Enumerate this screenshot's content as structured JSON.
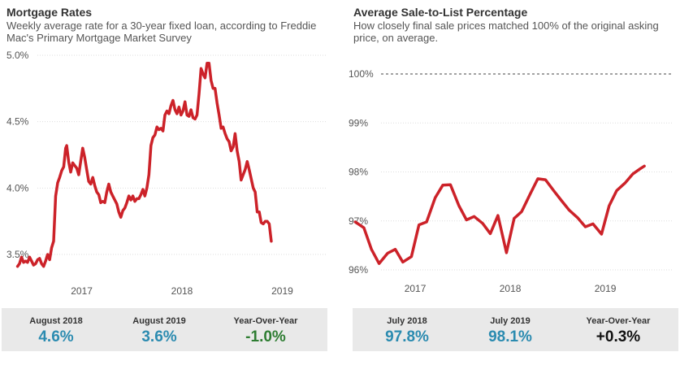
{
  "colors": {
    "line": "#cc2229",
    "stat_blue": "#2b8bb0",
    "stat_green": "#2e7d32",
    "stat_black": "#111111",
    "grid": "#dddddd"
  },
  "left": {
    "title": "Mortgage Rates",
    "subtitle": "Weekly average rate for a 30-year fixed loan, according to Freddie Mac's Primary Mortgage Market Survey",
    "stats": [
      {
        "label": "August 2018",
        "value": "4.6%"
      },
      {
        "label": "August 2019",
        "value": "3.6%"
      },
      {
        "label": "Year-Over-Year",
        "value": "-1.0%"
      }
    ]
  },
  "right": {
    "title": "Average Sale-to-List Percentage",
    "subtitle": "How closely final sale prices matched 100% of the original asking price, on average.",
    "stats": [
      {
        "label": "July 2018",
        "value": "97.8%"
      },
      {
        "label": "July 2019",
        "value": "98.1%"
      },
      {
        "label": "Year-Over-Year",
        "value": "+0.3%"
      }
    ]
  },
  "chart_data": [
    {
      "type": "line",
      "title": "Mortgage Rates",
      "xlabel": "",
      "ylabel": "",
      "ylim": [
        3.5,
        5.0
      ],
      "xlim": [
        2016.25,
        2019.45
      ],
      "x_ticks": [
        {
          "value": 2017,
          "label": "2017"
        },
        {
          "value": 2018,
          "label": "2018"
        },
        {
          "value": 2019,
          "label": "2019"
        }
      ],
      "y_ticks": [
        {
          "value": 3.5,
          "label": "3.5%"
        },
        {
          "value": 4.0,
          "label": "4.0%"
        },
        {
          "value": 4.5,
          "label": "4.5%"
        },
        {
          "value": 5.0,
          "label": "5.0%"
        }
      ],
      "series": [
        {
          "name": "30-year fixed rate",
          "points": [
            [
              2016.36,
              3.41
            ],
            [
              2016.38,
              3.43
            ],
            [
              2016.4,
              3.48
            ],
            [
              2016.42,
              3.44
            ],
            [
              2016.44,
              3.45
            ],
            [
              2016.46,
              3.44
            ],
            [
              2016.48,
              3.48
            ],
            [
              2016.5,
              3.45
            ],
            [
              2016.52,
              3.42
            ],
            [
              2016.54,
              3.43
            ],
            [
              2016.56,
              3.46
            ],
            [
              2016.58,
              3.47
            ],
            [
              2016.6,
              3.43
            ],
            [
              2016.62,
              3.41
            ],
            [
              2016.64,
              3.45
            ],
            [
              2016.66,
              3.5
            ],
            [
              2016.68,
              3.46
            ],
            [
              2016.7,
              3.55
            ],
            [
              2016.72,
              3.6
            ],
            [
              2016.74,
              3.94
            ],
            [
              2016.76,
              4.04
            ],
            [
              2016.78,
              4.08
            ],
            [
              2016.8,
              4.13
            ],
            [
              2016.82,
              4.16
            ],
            [
              2016.84,
              4.3
            ],
            [
              2016.85,
              4.32
            ],
            [
              2016.87,
              4.2
            ],
            [
              2016.89,
              4.12
            ],
            [
              2016.91,
              4.19
            ],
            [
              2016.93,
              4.17
            ],
            [
              2016.95,
              4.15
            ],
            [
              2016.97,
              4.1
            ],
            [
              2016.99,
              4.2
            ],
            [
              2017.01,
              4.3
            ],
            [
              2017.03,
              4.23
            ],
            [
              2017.05,
              4.14
            ],
            [
              2017.07,
              4.05
            ],
            [
              2017.09,
              4.03
            ],
            [
              2017.11,
              4.08
            ],
            [
              2017.13,
              4.02
            ],
            [
              2017.15,
              3.97
            ],
            [
              2017.17,
              3.95
            ],
            [
              2017.19,
              3.89
            ],
            [
              2017.21,
              3.9
            ],
            [
              2017.23,
              3.89
            ],
            [
              2017.25,
              3.97
            ],
            [
              2017.27,
              4.03
            ],
            [
              2017.29,
              3.97
            ],
            [
              2017.31,
              3.94
            ],
            [
              2017.33,
              3.91
            ],
            [
              2017.35,
              3.88
            ],
            [
              2017.37,
              3.82
            ],
            [
              2017.39,
              3.78
            ],
            [
              2017.41,
              3.83
            ],
            [
              2017.43,
              3.85
            ],
            [
              2017.45,
              3.89
            ],
            [
              2017.47,
              3.94
            ],
            [
              2017.49,
              3.91
            ],
            [
              2017.51,
              3.94
            ],
            [
              2017.53,
              3.9
            ],
            [
              2017.55,
              3.92
            ],
            [
              2017.57,
              3.92
            ],
            [
              2017.59,
              3.95
            ],
            [
              2017.61,
              3.99
            ],
            [
              2017.63,
              3.94
            ],
            [
              2017.65,
              4.0
            ],
            [
              2017.67,
              4.1
            ],
            [
              2017.69,
              4.32
            ],
            [
              2017.71,
              4.38
            ],
            [
              2017.73,
              4.4
            ],
            [
              2017.75,
              4.46
            ],
            [
              2017.77,
              4.44
            ],
            [
              2017.79,
              4.45
            ],
            [
              2017.81,
              4.43
            ],
            [
              2017.83,
              4.55
            ],
            [
              2017.85,
              4.58
            ],
            [
              2017.87,
              4.56
            ],
            [
              2017.89,
              4.62
            ],
            [
              2017.91,
              4.66
            ],
            [
              2017.93,
              4.59
            ],
            [
              2017.95,
              4.56
            ],
            [
              2017.97,
              4.61
            ],
            [
              2017.99,
              4.55
            ],
            [
              2018.01,
              4.58
            ],
            [
              2018.03,
              4.65
            ],
            [
              2018.05,
              4.55
            ],
            [
              2018.07,
              4.54
            ],
            [
              2018.09,
              4.59
            ],
            [
              2018.11,
              4.53
            ],
            [
              2018.13,
              4.52
            ],
            [
              2018.15,
              4.55
            ],
            [
              2018.17,
              4.71
            ],
            [
              2018.19,
              4.9
            ],
            [
              2018.21,
              4.86
            ],
            [
              2018.23,
              4.83
            ],
            [
              2018.25,
              4.94
            ],
            [
              2018.27,
              4.94
            ],
            [
              2018.29,
              4.81
            ],
            [
              2018.31,
              4.75
            ],
            [
              2018.33,
              4.75
            ],
            [
              2018.35,
              4.64
            ],
            [
              2018.37,
              4.55
            ],
            [
              2018.39,
              4.45
            ],
            [
              2018.41,
              4.46
            ],
            [
              2018.43,
              4.41
            ],
            [
              2018.45,
              4.37
            ],
            [
              2018.47,
              4.35
            ],
            [
              2018.49,
              4.28
            ],
            [
              2018.51,
              4.31
            ],
            [
              2018.53,
              4.41
            ],
            [
              2018.55,
              4.28
            ],
            [
              2018.57,
              4.2
            ],
            [
              2018.59,
              4.06
            ],
            [
              2018.61,
              4.1
            ],
            [
              2018.63,
              4.14
            ],
            [
              2018.65,
              4.2
            ],
            [
              2018.67,
              4.14
            ],
            [
              2018.69,
              4.07
            ],
            [
              2018.71,
              4.0
            ],
            [
              2018.73,
              3.97
            ],
            [
              2018.75,
              3.82
            ],
            [
              2018.77,
              3.82
            ],
            [
              2018.79,
              3.74
            ],
            [
              2018.81,
              3.73
            ],
            [
              2018.83,
              3.75
            ],
            [
              2018.85,
              3.75
            ],
            [
              2018.87,
              3.73
            ],
            [
              2018.89,
              3.6
            ]
          ]
        }
      ]
    },
    {
      "type": "line",
      "title": "Average Sale-to-List Percentage",
      "xlabel": "",
      "ylabel": "",
      "ylim": [
        96.0,
        100.0
      ],
      "xlim": [
        2016.35,
        2019.7
      ],
      "x_ticks": [
        {
          "value": 2017,
          "label": "2017"
        },
        {
          "value": 2018,
          "label": "2018"
        },
        {
          "value": 2019,
          "label": "2019"
        }
      ],
      "y_ticks": [
        {
          "value": 96,
          "label": "96%"
        },
        {
          "value": 97,
          "label": "97%"
        },
        {
          "value": 98,
          "label": "98%"
        },
        {
          "value": 99,
          "label": "99%"
        },
        {
          "value": 100,
          "label": "100%"
        }
      ],
      "reference_line": {
        "value": 100,
        "style": "dashed"
      },
      "series": [
        {
          "name": "Sale-to-list percentage",
          "points": [
            [
              2016.37,
              96.98
            ],
            [
              2016.46,
              96.86
            ],
            [
              2016.54,
              96.42
            ],
            [
              2016.62,
              96.13
            ],
            [
              2016.71,
              96.34
            ],
            [
              2016.79,
              96.42
            ],
            [
              2016.87,
              96.16
            ],
            [
              2016.96,
              96.27
            ],
            [
              2017.04,
              96.92
            ],
            [
              2017.12,
              96.98
            ],
            [
              2017.21,
              97.47
            ],
            [
              2017.29,
              97.73
            ],
            [
              2017.37,
              97.74
            ],
            [
              2017.46,
              97.31
            ],
            [
              2017.54,
              97.02
            ],
            [
              2017.62,
              97.09
            ],
            [
              2017.71,
              96.95
            ],
            [
              2017.79,
              96.74
            ],
            [
              2017.87,
              97.11
            ],
            [
              2017.96,
              96.35
            ],
            [
              2018.04,
              97.05
            ],
            [
              2018.12,
              97.19
            ],
            [
              2018.21,
              97.55
            ],
            [
              2018.29,
              97.86
            ],
            [
              2018.37,
              97.84
            ],
            [
              2018.46,
              97.61
            ],
            [
              2018.54,
              97.41
            ],
            [
              2018.62,
              97.22
            ],
            [
              2018.71,
              97.06
            ],
            [
              2018.79,
              96.88
            ],
            [
              2018.87,
              96.94
            ],
            [
              2018.96,
              96.73
            ],
            [
              2019.04,
              97.31
            ],
            [
              2019.12,
              97.62
            ],
            [
              2019.21,
              97.78
            ],
            [
              2019.29,
              97.96
            ],
            [
              2019.37,
              98.07
            ],
            [
              2019.41,
              98.12
            ]
          ]
        }
      ]
    }
  ]
}
